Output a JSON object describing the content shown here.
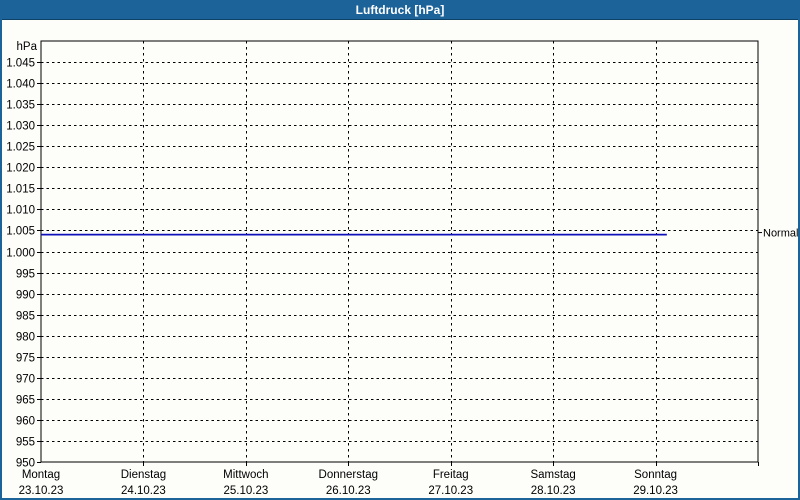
{
  "window": {
    "title": "Luftdruck [hPa]",
    "title_bar_color": "#1c6399",
    "frame_color": "#1c6399",
    "background_color": "#fdfdfa"
  },
  "chart_data": {
    "type": "line",
    "title": "Luftdruck [hPa]",
    "grid": true,
    "y_axis": {
      "unit": "hPa",
      "min": 950,
      "max": 1050,
      "tick_step": 5,
      "ticks": [
        {
          "value": 1045,
          "label": "1.045"
        },
        {
          "value": 1040,
          "label": "1.040"
        },
        {
          "value": 1035,
          "label": "1.035"
        },
        {
          "value": 1030,
          "label": "1.030"
        },
        {
          "value": 1025,
          "label": "1.025"
        },
        {
          "value": 1020,
          "label": "1.020"
        },
        {
          "value": 1015,
          "label": "1.015"
        },
        {
          "value": 1010,
          "label": "1.010"
        },
        {
          "value": 1005,
          "label": "1.005"
        },
        {
          "value": 1000,
          "label": "1.000"
        },
        {
          "value": 995,
          "label": "995"
        },
        {
          "value": 990,
          "label": "990"
        },
        {
          "value": 985,
          "label": "985"
        },
        {
          "value": 980,
          "label": "980"
        },
        {
          "value": 975,
          "label": "975"
        },
        {
          "value": 970,
          "label": "970"
        },
        {
          "value": 965,
          "label": "965"
        },
        {
          "value": 960,
          "label": "960"
        },
        {
          "value": 955,
          "label": "955"
        },
        {
          "value": 950,
          "label": "950"
        }
      ]
    },
    "x_axis": {
      "days": [
        {
          "weekday": "Montag",
          "date": "23.10.23"
        },
        {
          "weekday": "Dienstag",
          "date": "24.10.23"
        },
        {
          "weekday": "Mittwoch",
          "date": "25.10.23"
        },
        {
          "weekday": "Donnerstag",
          "date": "26.10.23"
        },
        {
          "weekday": "Freitag",
          "date": "27.10.23"
        },
        {
          "weekday": "Samstag",
          "date": "28.10.23"
        },
        {
          "weekday": "Sonntag",
          "date": "29.10.23"
        }
      ]
    },
    "series": [
      {
        "name": "Luftdruck",
        "color": "#1010bb",
        "points": [
          [
            0,
            1004
          ],
          [
            6.11,
            1004
          ]
        ]
      }
    ],
    "reference_line": {
      "label": "Normal",
      "value": 1004.5
    },
    "legend_position": "right"
  }
}
